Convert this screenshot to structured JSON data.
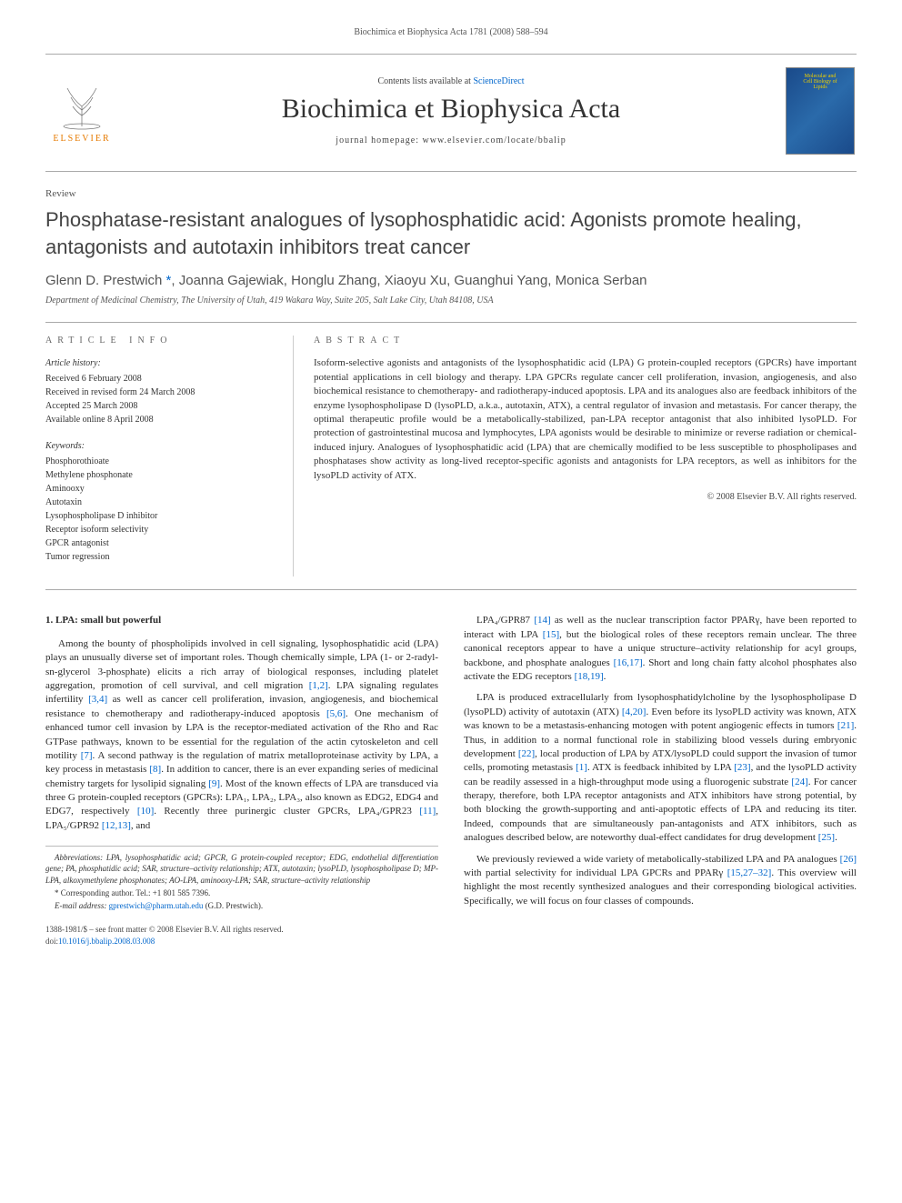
{
  "header_citation": "Biochimica et Biophysica Acta 1781 (2008) 588–594",
  "masthead": {
    "contents_prefix": "Contents lists available at ",
    "contents_link": "ScienceDirect",
    "journal_title": "Biochimica et Biophysica Acta",
    "homepage": "journal homepage: www.elsevier.com/locate/bbalip",
    "elsevier_label": "ELSEVIER",
    "cover_line1": "Molecular and",
    "cover_line2": "Cell Biology of",
    "cover_line3": "Lipids"
  },
  "review_label": "Review",
  "title": "Phosphatase-resistant analogues of lysophosphatidic acid: Agonists promote healing, antagonists and autotaxin inhibitors treat cancer",
  "authors_prefix": "Glenn D. Prestwich ",
  "authors_star": "*",
  "authors_rest": ", Joanna Gajewiak, Honglu Zhang, Xiaoyu Xu, Guanghui Yang, Monica Serban",
  "affiliation": "Department of Medicinal Chemistry, The University of Utah, 419 Wakara Way, Suite 205, Salt Lake City, Utah 84108, USA",
  "section_heads": {
    "info": "ARTICLE INFO",
    "abstract": "ABSTRACT"
  },
  "history": {
    "label": "Article history:",
    "received": "Received 6 February 2008",
    "revised": "Received in revised form 24 March 2008",
    "accepted": "Accepted 25 March 2008",
    "online": "Available online 8 April 2008"
  },
  "keywords": {
    "label": "Keywords:",
    "items": [
      "Phosphorothioate",
      "Methylene phosphonate",
      "Aminooxy",
      "Autotaxin",
      "Lysophospholipase D inhibitor",
      "Receptor isoform selectivity",
      "GPCR antagonist",
      "Tumor regression"
    ]
  },
  "abstract": "Isoform-selective agonists and antagonists of the lysophosphatidic acid (LPA) G protein-coupled receptors (GPCRs) have important potential applications in cell biology and therapy. LPA GPCRs regulate cancer cell proliferation, invasion, angiogenesis, and also biochemical resistance to chemotherapy- and radiotherapy-induced apoptosis. LPA and its analogues also are feedback inhibitors of the enzyme lysophospholipase D (lysoPLD, a.k.a., autotaxin, ATX), a central regulator of invasion and metastasis. For cancer therapy, the optimal therapeutic profile would be a metabolically-stabilized, pan-LPA receptor antagonist that also inhibited lysoPLD. For protection of gastrointestinal mucosa and lymphocytes, LPA agonists would be desirable to minimize or reverse radiation or chemical-induced injury. Analogues of lysophosphatidic acid (LPA) that are chemically modified to be less susceptible to phospholipases and phosphatases show activity as long-lived receptor-specific agonists and antagonists for LPA receptors, as well as inhibitors for the lysoPLD activity of ATX.",
  "copyright": "© 2008 Elsevier B.V. All rights reserved.",
  "body": {
    "heading": "1. LPA: small but powerful",
    "col1_paras": [
      "Among the bounty of phospholipids involved in cell signaling, lysophosphatidic acid (LPA) plays an unusually diverse set of important roles. Though chemically simple, LPA (1- or 2-radyl-sn-glycerol 3-phosphate) elicits a rich array of biological responses, including platelet aggregation, promotion of cell survival, and cell migration [1,2]. LPA signaling regulates infertility [3,4] as well as cancer cell proliferation, invasion, angiogenesis, and biochemical resistance to chemotherapy and radiotherapy-induced apoptosis [5,6]. One mechanism of enhanced tumor cell invasion by LPA is the receptor-mediated activation of the Rho and Rac GTPase pathways, known to be essential for the regulation of the actin cytoskeleton and cell motility [7]. A second pathway is the regulation of matrix metalloproteinase activity by LPA, a key process in metastasis [8]. In addition to cancer, there is an ever expanding series of medicinal chemistry targets for lysolipid signaling [9]. Most of the known effects of LPA are transduced via three G protein-coupled receptors (GPCRs): LPA₁, LPA₂, LPA₃, also known as EDG2, EDG4 and EDG7, respectively [10]. Recently three purinergic cluster GPCRs, LPA₄/GPR23 [11], LPA₅/GPR92 [12,13], and"
    ],
    "col2_paras": [
      "LPA₄/GPR87 [14] as well as the nuclear transcription factor PPARγ, have been reported to interact with LPA [15], but the biological roles of these receptors remain unclear. The three canonical receptors appear to have a unique structure–activity relationship for acyl groups, backbone, and phosphate analogues [16,17]. Short and long chain fatty alcohol phosphates also activate the EDG receptors [18,19].",
      "LPA is produced extracellularly from lysophosphatidylcholine by the lysophospholipase D (lysoPLD) activity of autotaxin (ATX) [4,20]. Even before its lysoPLD activity was known, ATX was known to be a metastasis-enhancing motogen with potent angiogenic effects in tumors [21]. Thus, in addition to a normal functional role in stabilizing blood vessels during embryonic development [22], local production of LPA by ATX/lysoPLD could support the invasion of tumor cells, promoting metastasis [1]. ATX is feedback inhibited by LPA [23], and the lysoPLD activity can be readily assessed in a high-throughput mode using a fluorogenic substrate [24]. For cancer therapy, therefore, both LPA receptor antagonists and ATX inhibitors have strong potential, by both blocking the growth-supporting and anti-apoptotic effects of LPA and reducing its titer. Indeed, compounds that are simultaneously pan-antagonists and ATX inhibitors, such as analogues described below, are noteworthy dual-effect candidates for drug development [25].",
      "We previously reviewed a wide variety of metabolically-stabilized LPA and PA analogues [26] with partial selectivity for individual LPA GPCRs and PPARγ [15,27–32]. This overview will highlight the most recently synthesized analogues and their corresponding biological activities. Specifically, we will focus on four classes of compounds."
    ]
  },
  "footnotes": {
    "abbrev": "Abbreviations: LPA, lysophosphatidic acid; GPCR, G protein-coupled receptor; EDG, endothelial differentiation gene; PA, phosphatidic acid; SAR, structure–activity relationship; ATX, autotaxin; lysoPLD, lysophospholipase D; MP-LPA, alkoxymethylene phosphonates; AO-LPA, aminooxy-LPA; SAR, structure–activity relationship",
    "corresponding": "* Corresponding author. Tel.: +1 801 585 7396.",
    "email_label": "E-mail address: ",
    "email": "gprestwich@pharm.utah.edu",
    "email_suffix": " (G.D. Prestwich)."
  },
  "footer": {
    "line1": "1388-1981/$ – see front matter © 2008 Elsevier B.V. All rights reserved.",
    "doi_prefix": "doi:",
    "doi": "10.1016/j.bbalip.2008.03.008"
  },
  "refmap": {
    "r12": "[1,2]",
    "r34": "[3,4]",
    "r56": "[5,6]",
    "r7": "[7]",
    "r8": "[8]",
    "r9": "[9]",
    "r10": "[10]",
    "r11": "[11]",
    "r1213": "[12,13]",
    "r14": "[14]",
    "r15": "[15]",
    "r1617": "[16,17]",
    "r1819": "[18,19]",
    "r420": "[4,20]",
    "r21": "[21]",
    "r22": "[22]",
    "r1": "[1]",
    "r23": "[23]",
    "r24": "[24]",
    "r25": "[25]",
    "r26": "[26]",
    "r1527": "[15,27–32]"
  }
}
